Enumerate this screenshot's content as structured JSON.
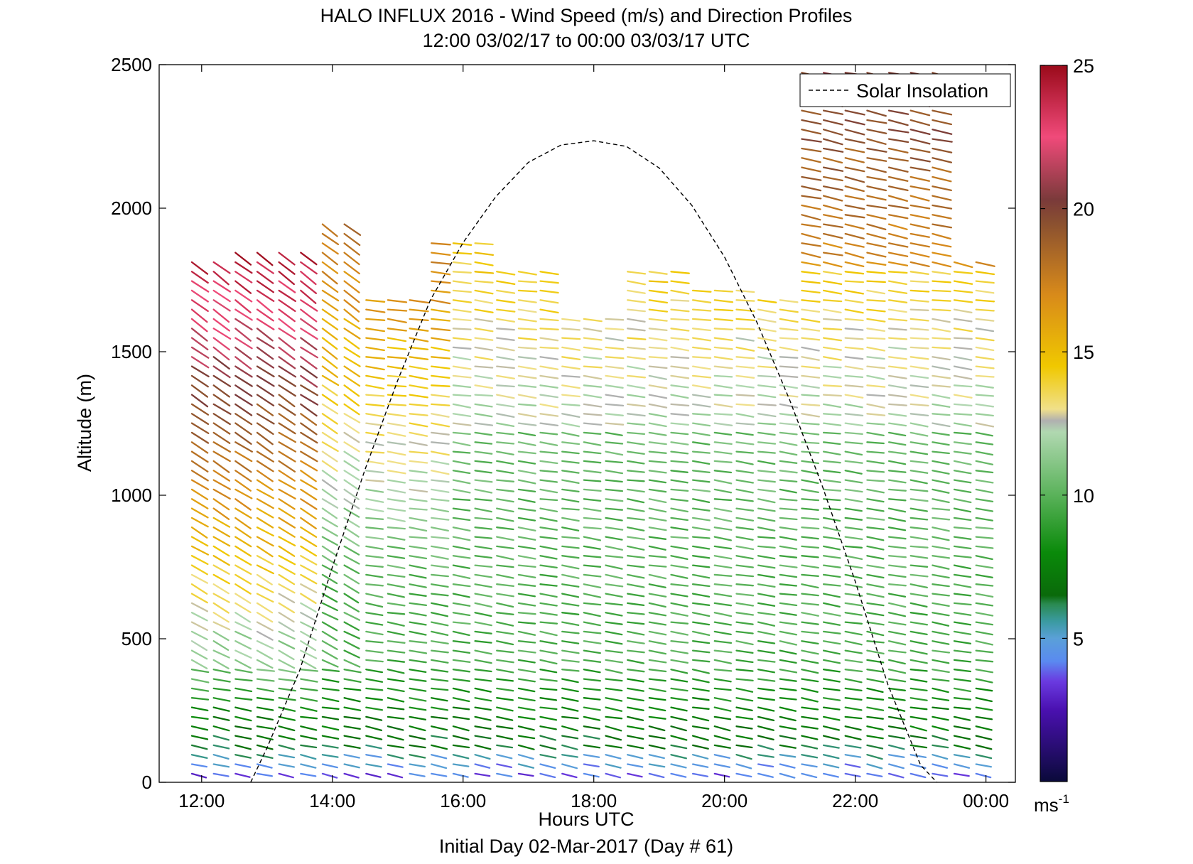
{
  "chart_data": {
    "type": "vector-field",
    "title": "HALO INFLUX 2016 - Wind Speed (m/s) and Direction Profiles",
    "subtitle": "12:00 03/02/17 to 00:00 03/03/17  UTC",
    "xlabel": "Hours UTC",
    "footer": "Initial Day 02-Mar-2017 (Day # 61)",
    "ylabel": "Altitude (m)",
    "xlim": [
      11.35,
      24.45
    ],
    "ylim": [
      0,
      2500
    ],
    "xticks": [
      {
        "value": 12,
        "label": "12:00"
      },
      {
        "value": 14,
        "label": "14:00"
      },
      {
        "value": 16,
        "label": "16:00"
      },
      {
        "value": 18,
        "label": "18:00"
      },
      {
        "value": 20,
        "label": "20:00"
      },
      {
        "value": 22,
        "label": "22:00"
      },
      {
        "value": 24,
        "label": "00:00"
      }
    ],
    "yticks": [
      0,
      500,
      1000,
      1500,
      2000,
      2500
    ],
    "colorbar": {
      "range": [
        0,
        25
      ],
      "ticks": [
        5,
        10,
        15,
        20,
        25
      ],
      "unit_label": "ms",
      "unit_exponent": "-1",
      "stops": [
        {
          "v": 0,
          "c": "#0a0a3a"
        },
        {
          "v": 2.5,
          "c": "#4a10b0"
        },
        {
          "v": 3.5,
          "c": "#6a3ae0"
        },
        {
          "v": 4.2,
          "c": "#5a8af0"
        },
        {
          "v": 5.0,
          "c": "#5aa0d8"
        },
        {
          "v": 5.6,
          "c": "#3a9aa0"
        },
        {
          "v": 6.2,
          "c": "#2a8a50"
        },
        {
          "v": 6.5,
          "c": "#0a6a0a"
        },
        {
          "v": 8.0,
          "c": "#0a8a0a"
        },
        {
          "v": 10.0,
          "c": "#5ab25a"
        },
        {
          "v": 12.2,
          "c": "#b0d8b0"
        },
        {
          "v": 12.6,
          "c": "#b0b0b0"
        },
        {
          "v": 13.0,
          "c": "#f0e08a"
        },
        {
          "v": 14.5,
          "c": "#f0c800"
        },
        {
          "v": 17.0,
          "c": "#d88a1a"
        },
        {
          "v": 19.5,
          "c": "#8a5030"
        },
        {
          "v": 20.3,
          "c": "#7a3a3a"
        },
        {
          "v": 22.5,
          "c": "#f04a7a"
        },
        {
          "v": 25,
          "c": "#9a0a1a"
        }
      ]
    },
    "series": [
      {
        "name": "Solar Insolation",
        "style": "dashed",
        "color": "#000000",
        "x": [
          12.75,
          13.0,
          13.5,
          14.0,
          14.5,
          15.0,
          15.5,
          16.0,
          16.5,
          17.0,
          17.5,
          18.0,
          18.5,
          19.0,
          19.5,
          20.0,
          20.5,
          21.0,
          21.5,
          22.0,
          22.5,
          23.0,
          23.25
        ],
        "y": [
          0,
          120,
          390,
          750,
          1090,
          1400,
          1680,
          1880,
          2040,
          2160,
          2220,
          2235,
          2215,
          2140,
          2010,
          1830,
          1600,
          1330,
          1030,
          700,
          340,
          60,
          0
        ]
      }
    ],
    "vector_field": {
      "time_range": [
        11.85,
        23.85
      ],
      "profile_step_hours": 0.3333,
      "altitude_step_m": 33,
      "length_hours": 0.25,
      "coverage": [
        {
          "from": 11.85,
          "to": 12.4,
          "top": 1840
        },
        {
          "from": 12.4,
          "to": 13.7,
          "top": 1850
        },
        {
          "from": 13.7,
          "to": 14.5,
          "top": 1960
        },
        {
          "from": 14.5,
          "to": 15.4,
          "top": 1700
        },
        {
          "from": 15.4,
          "to": 16.3,
          "top": 1880
        },
        {
          "from": 16.3,
          "to": 17.4,
          "top": 1780
        },
        {
          "from": 17.4,
          "to": 18.4,
          "top": 1620
        },
        {
          "from": 18.4,
          "to": 19.2,
          "top": 1780
        },
        {
          "from": 19.2,
          "to": 20.2,
          "top": 1730
        },
        {
          "from": 20.2,
          "to": 21.0,
          "top": 1700
        },
        {
          "from": 21.0,
          "to": 22.4,
          "top": 2480
        },
        {
          "from": 22.4,
          "to": 23.2,
          "top": 2480
        },
        {
          "from": 23.2,
          "to": 23.85,
          "top": 1830
        }
      ]
    }
  },
  "legend": {
    "label": "Solar Insolation",
    "position": "top-right"
  }
}
